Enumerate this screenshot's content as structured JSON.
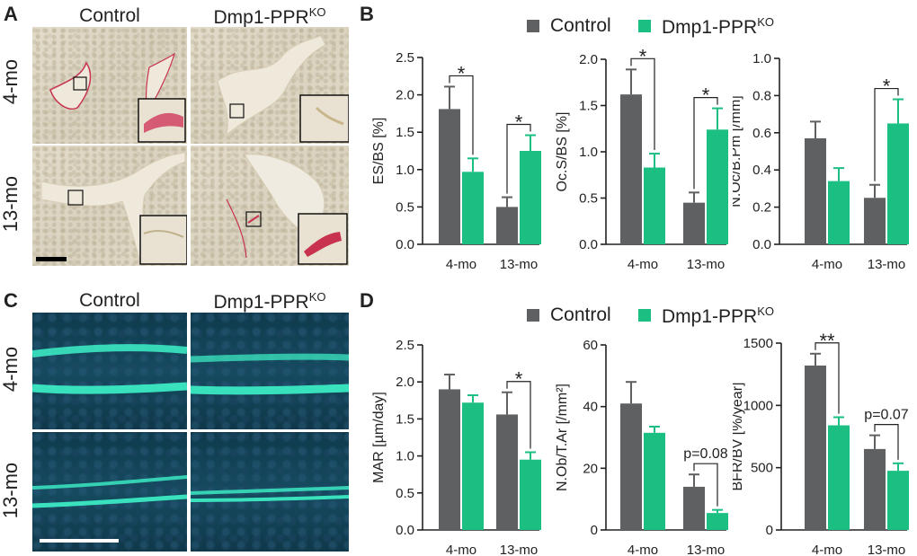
{
  "panels": {
    "a": "A",
    "b": "B",
    "c": "C",
    "d": "D"
  },
  "micrographs": {
    "columns": [
      "Control",
      "Dmp1-PPR"
    ],
    "ko_superscript": "KO",
    "rows": [
      "4-mo",
      "13-mo"
    ]
  },
  "legend": {
    "control": "Control",
    "ko_base": "Dmp1-PPR",
    "ko_superscript": "KO"
  },
  "colors": {
    "control": "#5f6062",
    "ko": "#1cbf82",
    "histo_stain": "#c8324f",
    "fluor_label": "#3df2c8"
  },
  "chart_data": [
    {
      "id": "es-bs",
      "type": "bar",
      "ylabel": "ES/BS [%]",
      "categories": [
        "4-mo",
        "13-mo"
      ],
      "ylim": [
        0,
        2.5
      ],
      "yticks": [
        "0.0",
        "0.5",
        "1.0",
        "1.5",
        "2.0",
        "2.5"
      ],
      "series": [
        {
          "name": "Control",
          "values": [
            1.81,
            0.5
          ],
          "errors": [
            0.3,
            0.13
          ]
        },
        {
          "name": "Dmp1-PPR KO",
          "values": [
            0.97,
            1.25
          ],
          "errors": [
            0.18,
            0.21
          ]
        }
      ],
      "annotations": [
        {
          "category": 0,
          "label": "*"
        },
        {
          "category": 1,
          "label": "*"
        }
      ]
    },
    {
      "id": "oc-s-bs",
      "type": "bar",
      "ylabel": "Oc.S/BS [%]",
      "categories": [
        "4-mo",
        "13-mo"
      ],
      "ylim": [
        0,
        2.0
      ],
      "yticks": [
        "0.0",
        "0.5",
        "1.0",
        "1.5",
        "2.0"
      ],
      "series": [
        {
          "name": "Control",
          "values": [
            1.62,
            0.45
          ],
          "errors": [
            0.27,
            0.11
          ]
        },
        {
          "name": "Dmp1-PPR KO",
          "values": [
            0.83,
            1.24
          ],
          "errors": [
            0.15,
            0.23
          ]
        }
      ],
      "annotations": [
        {
          "category": 0,
          "label": "*"
        },
        {
          "category": 1,
          "label": "*"
        }
      ]
    },
    {
      "id": "n-oc-b-pm",
      "type": "bar",
      "ylabel": "N.Oc/B.Pm [/mm]",
      "categories": [
        "4-mo",
        "13-mo"
      ],
      "ylim": [
        0,
        1.0
      ],
      "yticks": [
        "0.0",
        "0.2",
        "0.4",
        "0.6",
        "0.8",
        "1.0"
      ],
      "series": [
        {
          "name": "Control",
          "values": [
            0.57,
            0.25
          ],
          "errors": [
            0.09,
            0.07
          ]
        },
        {
          "name": "Dmp1-PPR KO",
          "values": [
            0.34,
            0.65
          ],
          "errors": [
            0.07,
            0.13
          ]
        }
      ],
      "annotations": [
        {
          "category": 1,
          "label": "*"
        }
      ]
    },
    {
      "id": "mar",
      "type": "bar",
      "ylabel": "MAR [µm/day]",
      "categories": [
        "4-mo",
        "13-mo"
      ],
      "ylim": [
        0,
        2.5
      ],
      "yticks": [
        "0.0",
        "0.5",
        "1.0",
        "1.5",
        "2.0",
        "2.5"
      ],
      "series": [
        {
          "name": "Control",
          "values": [
            1.9,
            1.56
          ],
          "errors": [
            0.2,
            0.3
          ]
        },
        {
          "name": "Dmp1-PPR KO",
          "values": [
            1.72,
            0.95
          ],
          "errors": [
            0.1,
            0.1
          ]
        }
      ],
      "annotations": [
        {
          "category": 1,
          "label": "*"
        }
      ]
    },
    {
      "id": "n-ob-t-ar",
      "type": "bar",
      "ylabel": "N.Ob/T.Ar [/mm²]",
      "categories": [
        "4-mo",
        "13-mo"
      ],
      "ylim": [
        0,
        60
      ],
      "yticks": [
        "0",
        "20",
        "40",
        "60"
      ],
      "series": [
        {
          "name": "Control",
          "values": [
            41,
            14
          ],
          "errors": [
            7,
            4
          ]
        },
        {
          "name": "Dmp1-PPR KO",
          "values": [
            31.5,
            5.5
          ],
          "errors": [
            2,
            1
          ]
        }
      ],
      "annotations": [
        {
          "category": 1,
          "label": "p=0.08"
        }
      ]
    },
    {
      "id": "bfr-bv",
      "type": "bar",
      "ylabel": "BFR/BV [%/year]",
      "categories": [
        "4-mo",
        "13-mo"
      ],
      "ylim": [
        0,
        1500
      ],
      "yticks": [
        "0",
        "500",
        "1000",
        "1500"
      ],
      "series": [
        {
          "name": "Control",
          "values": [
            1320,
            650
          ],
          "errors": [
            95,
            110
          ]
        },
        {
          "name": "Dmp1-PPR KO",
          "values": [
            840,
            475
          ],
          "errors": [
            65,
            60
          ]
        }
      ],
      "annotations": [
        {
          "category": 0,
          "label": "**"
        },
        {
          "category": 1,
          "label": "p=0.07"
        }
      ]
    }
  ]
}
